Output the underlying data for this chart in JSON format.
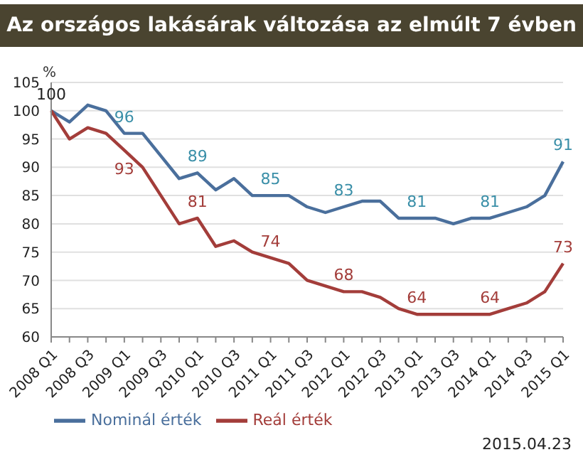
{
  "chart_data": {
    "type": "line",
    "title": "Az országos lakásárak változása az elmúlt 7 évben",
    "ylabel": "%",
    "categories": [
      "2008 Q1",
      null,
      "2008 Q3",
      null,
      "2009 Q1",
      null,
      "2009 Q3",
      null,
      "2010 Q1",
      null,
      "2010 Q3",
      null,
      "2011 Q1",
      null,
      "2011 Q3",
      null,
      "2012 Q1",
      null,
      "2012 Q3",
      null,
      "2013 Q1",
      null,
      "2013 Q3",
      null,
      "2014 Q1",
      null,
      "2014 Q3",
      null,
      "2015 Q1"
    ],
    "series": [
      {
        "name": "Nominál érték",
        "color": "#4a6f9c",
        "values": [
          100,
          98,
          101,
          100,
          96,
          96,
          92,
          88,
          89,
          86,
          88,
          85,
          85,
          85,
          83,
          82,
          83,
          84,
          84,
          81,
          81,
          81,
          80,
          81,
          81,
          82,
          83,
          85,
          91
        ],
        "value_labels": [
          "100",
          null,
          null,
          null,
          "96",
          null,
          null,
          null,
          "89",
          null,
          null,
          null,
          "85",
          null,
          null,
          null,
          "83",
          null,
          null,
          null,
          "81",
          null,
          null,
          null,
          "81",
          null,
          null,
          null,
          "91"
        ]
      },
      {
        "name": "Reál érték",
        "color": "#a33d3a",
        "values": [
          100,
          95,
          97,
          96,
          93,
          90,
          85,
          80,
          81,
          76,
          77,
          75,
          74,
          73,
          70,
          69,
          68,
          68,
          67,
          65,
          64,
          64,
          64,
          64,
          64,
          65,
          66,
          68,
          73
        ],
        "value_labels": [
          null,
          null,
          null,
          null,
          "93",
          null,
          null,
          null,
          "81",
          null,
          null,
          null,
          "74",
          null,
          null,
          null,
          "68",
          null,
          null,
          null,
          "64",
          null,
          null,
          null,
          "64",
          null,
          null,
          null,
          "73"
        ]
      }
    ],
    "ylim": [
      60,
      105
    ],
    "yticks": [
      60,
      65,
      70,
      75,
      80,
      85,
      90,
      95,
      100,
      105
    ],
    "grid": "y",
    "legend": "bottom left",
    "marker": "none",
    "line_style": "solid",
    "annotations": [
      "2015.04.23"
    ]
  }
}
